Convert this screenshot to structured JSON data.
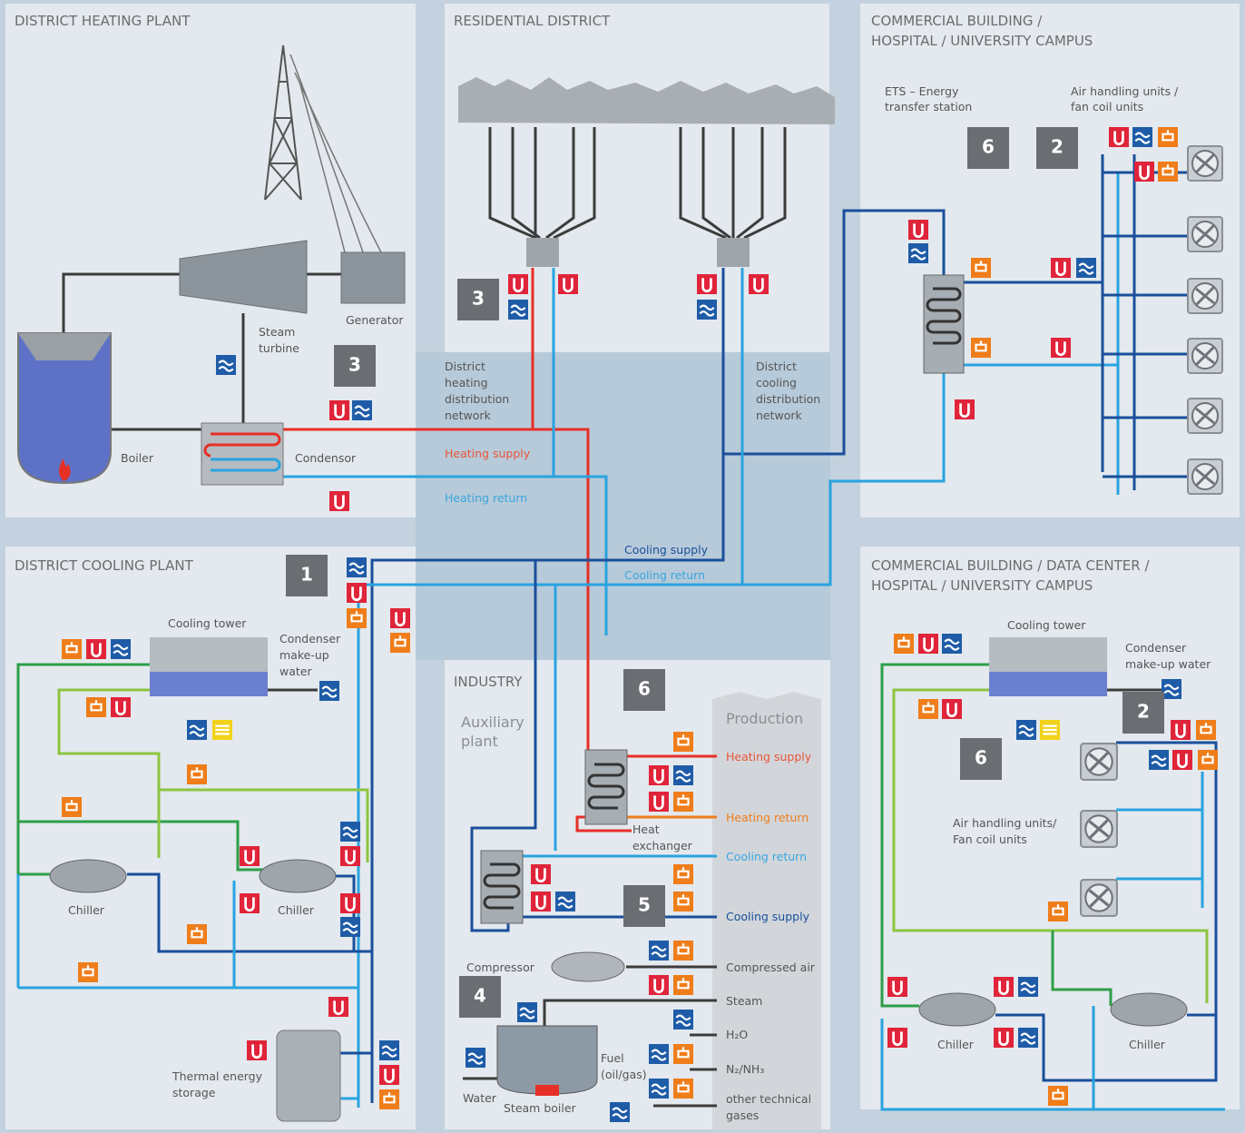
{
  "district_heating_plant": {
    "title": "DISTRICT HEATING PLANT",
    "steam_turbine": [
      "Steam",
      "turbine"
    ],
    "generator": "Generator",
    "boiler": "Boiler",
    "condensor": "Condensor",
    "badge": "3"
  },
  "residential_district": {
    "title": "RESIDENTIAL DISTRICT",
    "badge": "3"
  },
  "network": {
    "heating_network": [
      "District",
      "heating",
      "distribution",
      "network"
    ],
    "heating_supply": "Heating supply",
    "heating_return": "Heating return",
    "cooling_network": [
      "District",
      "cooling",
      "distribution",
      "network"
    ],
    "cooling_supply": "Cooling supply",
    "cooling_return": "Cooling return"
  },
  "commercial_top": {
    "title": [
      "COMMERCIAL BUILDING /",
      "HOSPITAL / UNIVERSITY CAMPUS"
    ],
    "ets": [
      "ETS – Energy",
      "transfer station"
    ],
    "ahu": [
      "Air handling units /",
      "fan coil units"
    ],
    "badges": [
      "6",
      "2"
    ]
  },
  "district_cooling_plant": {
    "title": "DISTRICT COOLING PLANT",
    "cooling_tower": "Cooling tower",
    "condenser_water": [
      "Condenser",
      "make-up",
      "water"
    ],
    "chillers": [
      "Chiller",
      "Chiller"
    ],
    "storage": [
      "Thermal energy",
      "storage"
    ],
    "badge": "1"
  },
  "industry": {
    "title": "INDUSTRY",
    "auxiliary": [
      "Auxiliary",
      "plant"
    ],
    "production": "Production",
    "heating_supply": "Heating supply",
    "heating_return": "Heating return",
    "heat_exchanger": [
      "Heat",
      "exchanger"
    ],
    "cooling_return": "Cooling return",
    "cooling_supply": "Cooling supply",
    "compressor": "Compressor",
    "compressed_air": "Compressed air",
    "steam": "Steam",
    "h2o": "H₂O",
    "gases": "N₂/NH₃",
    "other_gases": [
      "other technical",
      "gases"
    ],
    "fuel": [
      "Fuel",
      "(oil/gas)"
    ],
    "water": "Water",
    "steam_boiler": "Steam boiler",
    "badges": [
      "6",
      "5",
      "4"
    ]
  },
  "commercial_bottom": {
    "title": [
      "COMMERCIAL BUILDING / DATA CENTER /",
      "HOSPITAL / UNIVERSITY CAMPUS"
    ],
    "cooling_tower": "Cooling tower",
    "condenser_water": [
      "Condenser",
      "make-up water"
    ],
    "ahu": [
      "Air handling units/",
      "Fan coil units"
    ],
    "chillers": [
      "Chiller",
      "Chiller"
    ],
    "badges": [
      "2",
      "6"
    ]
  }
}
